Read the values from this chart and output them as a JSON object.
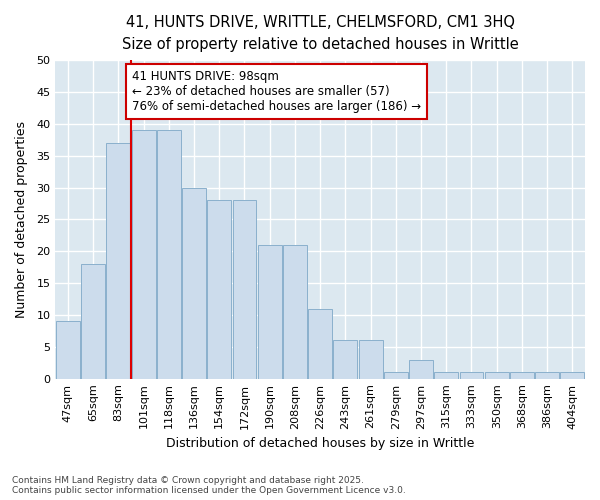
{
  "title_line1": "41, HUNTS DRIVE, WRITTLE, CHELMSFORD, CM1 3HQ",
  "title_line2": "Size of property relative to detached houses in Writtle",
  "xlabel": "Distribution of detached houses by size in Writtle",
  "ylabel": "Number of detached properties",
  "categories": [
    "47sqm",
    "65sqm",
    "83sqm",
    "101sqm",
    "118sqm",
    "136sqm",
    "154sqm",
    "172sqm",
    "190sqm",
    "208sqm",
    "226sqm",
    "243sqm",
    "261sqm",
    "279sqm",
    "297sqm",
    "315sqm",
    "333sqm",
    "350sqm",
    "368sqm",
    "386sqm",
    "404sqm"
  ],
  "values": [
    9,
    18,
    37,
    39,
    39,
    30,
    28,
    28,
    21,
    21,
    11,
    6,
    6,
    1,
    3,
    1,
    1,
    1,
    1,
    1,
    1
  ],
  "bar_color": "#ccdcec",
  "bar_edge_color": "#8ab0cc",
  "vline_x_index": 3,
  "vline_color": "#dd0000",
  "annotation_line1": "41 HUNTS DRIVE: 98sqm",
  "annotation_line2": "← 23% of detached houses are smaller (57)",
  "annotation_line3": "76% of semi-detached houses are larger (186) →",
  "annotation_box_color": "#ffffff",
  "annotation_box_edge": "#cc0000",
  "ylim": [
    0,
    50
  ],
  "yticks": [
    0,
    5,
    10,
    15,
    20,
    25,
    30,
    35,
    40,
    45,
    50
  ],
  "fig_bg_color": "#ffffff",
  "plot_bg_color": "#dce8f0",
  "grid_color": "#ffffff",
  "footer_text": "Contains HM Land Registry data © Crown copyright and database right 2025.\nContains public sector information licensed under the Open Government Licence v3.0.",
  "title_fontsize": 10.5,
  "subtitle_fontsize": 9.5,
  "axis_label_fontsize": 9,
  "tick_fontsize": 8,
  "annotation_fontsize": 8.5,
  "footer_fontsize": 6.5
}
